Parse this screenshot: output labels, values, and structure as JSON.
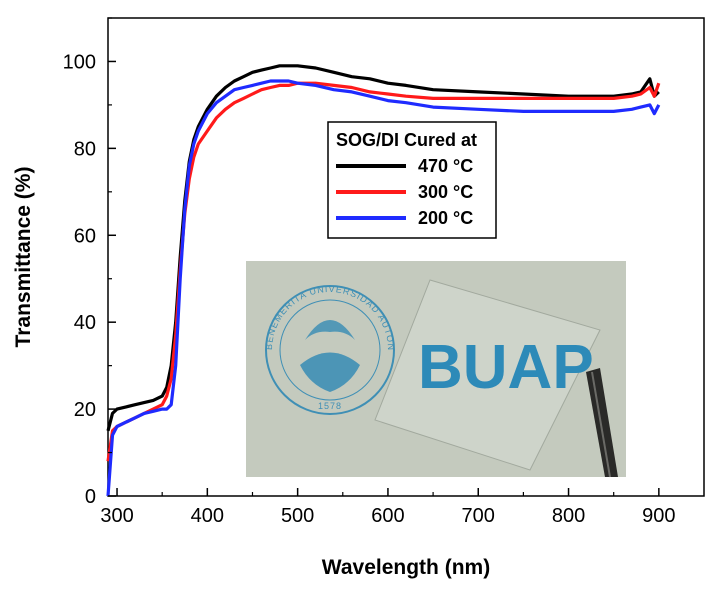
{
  "chart_data": {
    "type": "line",
    "title": "",
    "xlabel": "Wavelength (nm)",
    "ylabel": "Transmittance (%)",
    "xlim": [
      290,
      950
    ],
    "ylim": [
      0,
      110
    ],
    "xticks": [
      300,
      400,
      500,
      600,
      700,
      800,
      900
    ],
    "yticks": [
      0,
      20,
      40,
      60,
      80,
      100
    ],
    "grid": false,
    "legend": {
      "title": "SOG/DI Cured at",
      "location": "upper-middle-right",
      "entries": [
        "470 °C",
        "300 °C",
        "200 °C"
      ]
    },
    "series": [
      {
        "name": "470 °C",
        "color": "#000000",
        "x": [
          290,
          295,
          300,
          310,
          320,
          330,
          340,
          350,
          355,
          360,
          365,
          370,
          375,
          380,
          385,
          390,
          400,
          410,
          420,
          430,
          440,
          450,
          460,
          470,
          480,
          490,
          500,
          520,
          540,
          560,
          580,
          600,
          620,
          650,
          700,
          750,
          800,
          850,
          870,
          880,
          890,
          895,
          900
        ],
        "y": [
          15,
          19,
          20,
          20.5,
          21,
          21.5,
          22,
          23,
          25,
          30,
          40,
          55,
          68,
          77,
          82,
          85,
          89,
          92,
          94,
          95.5,
          96.5,
          97.5,
          98,
          98.5,
          99,
          99,
          99,
          98.5,
          97.5,
          96.5,
          96,
          95,
          94.5,
          93.5,
          93,
          92.5,
          92,
          92,
          92.5,
          93,
          96,
          92,
          93
        ]
      },
      {
        "name": "300 °C",
        "color": "#ff1a1a",
        "x": [
          290,
          295,
          300,
          310,
          320,
          330,
          340,
          350,
          355,
          360,
          365,
          370,
          375,
          380,
          385,
          390,
          400,
          410,
          420,
          430,
          440,
          450,
          460,
          470,
          480,
          490,
          500,
          520,
          540,
          560,
          580,
          600,
          620,
          650,
          700,
          750,
          800,
          850,
          870,
          880,
          890,
          895,
          900
        ],
        "y": [
          8,
          15,
          16,
          17,
          18,
          19,
          20,
          21,
          23,
          27,
          37,
          52,
          65,
          73,
          78,
          81,
          84,
          87,
          89,
          90.5,
          91.5,
          92.5,
          93.5,
          94,
          94.5,
          94.5,
          95,
          95,
          94.5,
          94,
          93,
          92.5,
          92,
          91.5,
          91.5,
          91.5,
          91.5,
          91.5,
          92,
          92.5,
          94,
          92,
          95
        ]
      },
      {
        "name": "200 °C",
        "color": "#1f2bff",
        "x": [
          290,
          295,
          300,
          310,
          320,
          330,
          340,
          350,
          355,
          360,
          365,
          370,
          375,
          380,
          385,
          390,
          400,
          410,
          420,
          430,
          440,
          450,
          460,
          470,
          480,
          490,
          500,
          520,
          540,
          560,
          580,
          600,
          620,
          650,
          700,
          750,
          800,
          850,
          870,
          880,
          890,
          895,
          900
        ],
        "y": [
          0,
          14,
          16,
          17,
          18,
          19,
          19.5,
          20,
          20,
          21,
          30,
          50,
          66,
          76,
          81,
          84,
          88,
          90.5,
          92,
          93.5,
          94,
          94.5,
          95,
          95.5,
          95.5,
          95.5,
          95,
          94.5,
          93.5,
          93,
          92,
          91,
          90.5,
          89.5,
          89,
          88.5,
          88.5,
          88.5,
          89,
          89.5,
          90,
          88,
          90
        ]
      }
    ],
    "inset_photo": {
      "description_text": "BUAP",
      "seal_text": "BENEMERITA UNIVERSIDAD AUTONOMA DE PUEBLA",
      "seal_year": "1578"
    }
  }
}
